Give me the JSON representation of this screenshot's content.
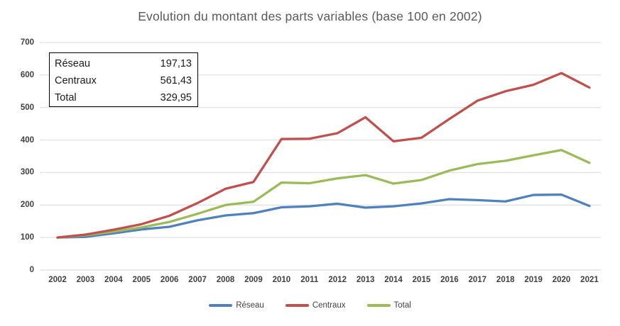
{
  "chart_data": {
    "type": "line",
    "title": "Evolution du montant des parts variables (base 100 en 2002)",
    "x": [
      2002,
      2003,
      2004,
      2005,
      2006,
      2007,
      2008,
      2009,
      2010,
      2011,
      2012,
      2013,
      2014,
      2015,
      2016,
      2017,
      2018,
      2019,
      2020,
      2021
    ],
    "series": [
      {
        "name": "Réseau",
        "color": "#4F81BD",
        "values": [
          100,
          102,
          113,
          125,
          133,
          153,
          168,
          175,
          193,
          196,
          204,
          192,
          196,
          205,
          218,
          215,
          211,
          231,
          232,
          197.13
        ]
      },
      {
        "name": "Centraux",
        "color": "#C0504D",
        "values": [
          100,
          109,
          124,
          141,
          167,
          206,
          250,
          271,
          403,
          404,
          421,
          470,
          396,
          407,
          465,
          521,
          550,
          570,
          606,
          561.43
        ]
      },
      {
        "name": "Total",
        "color": "#9BBB59",
        "values": [
          100,
          107,
          118,
          131,
          148,
          173,
          200,
          210,
          269,
          267,
          282,
          292,
          266,
          277,
          306,
          326,
          336,
          353,
          369,
          329.95
        ]
      }
    ],
    "ylim": [
      0,
      700
    ],
    "ytick_step": 100,
    "grid": true,
    "legend_position": "bottom",
    "gridline_color": "#D9D9D9",
    "axis_label_color": "#404040",
    "title_color": "#595959"
  },
  "stats_box": {
    "rows": [
      {
        "label": "Réseau",
        "value": "197,13"
      },
      {
        "label": "Centraux",
        "value": "561,43"
      },
      {
        "label": "Total",
        "value": "329,95"
      }
    ]
  },
  "legend": {
    "items": [
      {
        "label": "Réseau",
        "color": "#4F81BD"
      },
      {
        "label": "Centraux",
        "color": "#C0504D"
      },
      {
        "label": "Total",
        "color": "#9BBB59"
      }
    ]
  }
}
